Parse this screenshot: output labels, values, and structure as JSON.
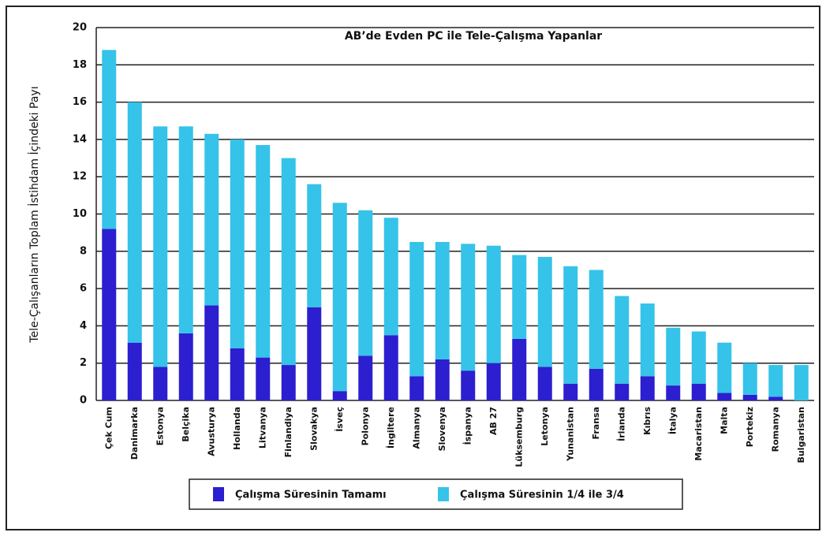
{
  "chart_data": {
    "type": "stacked_bar",
    "title": "AB’de Evden PC ile Tele-Çalışma Yapanlar",
    "y_label": "Tele-Çalışanların Toplam İstihdam İçindeki Payı",
    "categories": [
      "Çek Cum",
      "Danimarka",
      "Estonya",
      "Belçika",
      "Avusturya",
      "Hollanda",
      "Litvanya",
      "Finlandiya",
      "Slovakya",
      "İsveç",
      "Polonya",
      "İngiltere",
      "Almanya",
      "Slovenya",
      "İspanya",
      "AB 27",
      "Lüksemburg",
      "Letonya",
      "Yunanistan",
      "Fransa",
      "İrlanda",
      "Kıbrıs",
      "İtalya",
      "Macaristan",
      "Malta",
      "Portekiz",
      "Romanya",
      "Bulgaristan"
    ],
    "series": [
      {
        "name": "Çalışma Süresinin Tamamı",
        "color": "#2b1fcf",
        "values": [
          9.2,
          3.1,
          1.8,
          3.6,
          5.1,
          2.8,
          2.3,
          1.9,
          5.0,
          0.5,
          2.4,
          3.5,
          1.3,
          2.2,
          1.6,
          2.0,
          3.3,
          1.8,
          0.9,
          1.7,
          0.9,
          1.3,
          0.8,
          0.9,
          0.4,
          0.3,
          0.2,
          0
        ]
      },
      {
        "name": "Çalışma Süresinin  1/4 ile 3/4",
        "color": "#35c3e9",
        "values": [
          9.6,
          12.9,
          12.9,
          11.1,
          9.2,
          11.2,
          11.4,
          11.1,
          6.6,
          10.1,
          7.8,
          6.3,
          7.2,
          6.3,
          6.8,
          6.3,
          4.5,
          5.9,
          6.3,
          5.3,
          4.7,
          3.9,
          3.1,
          2.8,
          2.7,
          1.7,
          1.7,
          1.9
        ]
      }
    ],
    "ylim": [
      0,
      20
    ],
    "yticks": [
      0,
      2,
      4,
      6,
      8,
      10,
      12,
      14,
      16,
      18,
      20
    ],
    "grid": true
  }
}
